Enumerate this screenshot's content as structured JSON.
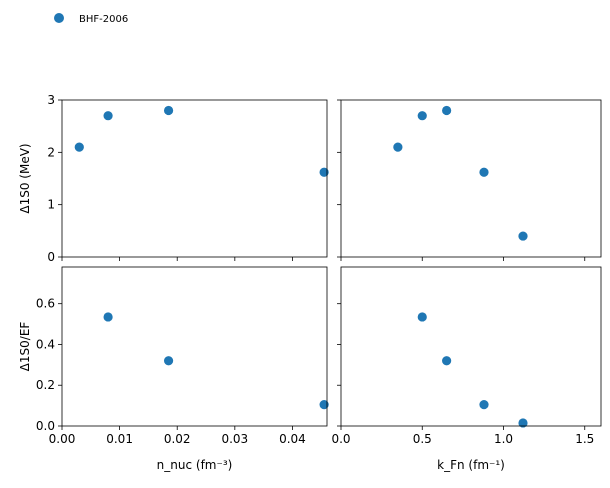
{
  "legend": {
    "label": "BHF-2006",
    "color": "#1f77b4",
    "marker": "circle",
    "placement": "top-left"
  },
  "chart_data": [
    {
      "id": "top-left",
      "type": "scatter",
      "xlim": [
        0,
        0.046
      ],
      "ylim": [
        0,
        3
      ],
      "xticks": [],
      "yticks": [
        "0",
        "1",
        "2",
        "3"
      ],
      "ylabel": "Δ1S0 (MeV)",
      "series": [
        {
          "name": "BHF-2006",
          "color": "#1f77b4",
          "x": [
            0.003,
            0.008,
            0.0185,
            0.0455
          ],
          "y": [
            2.1,
            2.7,
            2.8,
            1.62
          ]
        }
      ]
    },
    {
      "id": "top-right",
      "type": "scatter",
      "xlim": [
        0,
        1.6
      ],
      "ylim": [
        0,
        3
      ],
      "xticks": [],
      "yticks": [],
      "series": [
        {
          "name": "BHF-2006",
          "color": "#1f77b4",
          "x": [
            0.35,
            0.5,
            0.65,
            0.88,
            1.12
          ],
          "y": [
            2.1,
            2.7,
            2.8,
            1.62,
            0.4
          ]
        }
      ]
    },
    {
      "id": "bottom-left",
      "type": "scatter",
      "xlim": [
        0,
        0.046
      ],
      "ylim": [
        0,
        0.78
      ],
      "xticks": [
        "0.00",
        "0.01",
        "0.02",
        "0.03",
        "0.04"
      ],
      "yticks": [
        "0.0",
        "0.2",
        "0.4",
        "0.6"
      ],
      "xlabel": "n_nuc (fm⁻³)",
      "ylabel": "Δ1S0/EF",
      "series": [
        {
          "name": "BHF-2006",
          "color": "#1f77b4",
          "x": [
            0.008,
            0.0185,
            0.0455
          ],
          "y": [
            0.535,
            0.32,
            0.105
          ]
        }
      ]
    },
    {
      "id": "bottom-right",
      "type": "scatter",
      "xlim": [
        0,
        1.6
      ],
      "ylim": [
        0,
        0.78
      ],
      "xticks": [
        "0.0",
        "0.5",
        "1.0",
        "1.5"
      ],
      "yticks": [],
      "xlabel": "k_Fn (fm⁻¹)",
      "series": [
        {
          "name": "BHF-2006",
          "color": "#1f77b4",
          "x": [
            0.5,
            0.65,
            0.88,
            1.12
          ],
          "y": [
            0.535,
            0.32,
            0.105,
            0.015
          ]
        }
      ]
    }
  ]
}
